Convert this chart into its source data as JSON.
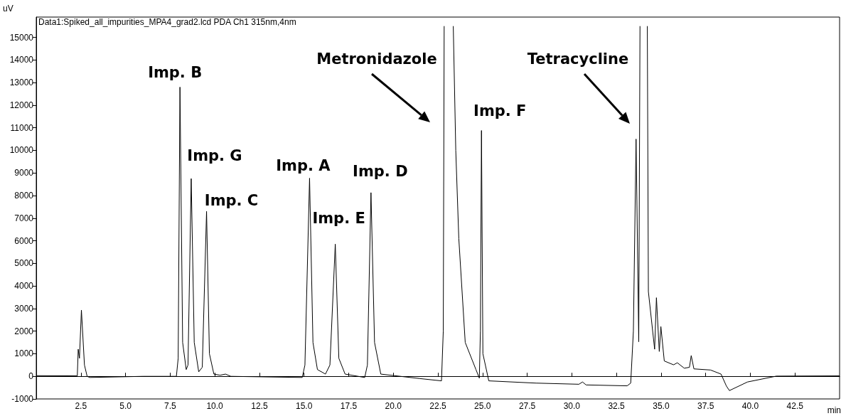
{
  "chart_data": {
    "type": "line",
    "title": "Data1:Spiked_all_impurities_MPA4_grad2.lcd PDA Ch1 315nm,4nm",
    "xlabel": "min",
    "ylabel": "uV",
    "xlim": [
      0,
      45
    ],
    "ylim": [
      -1000,
      15900
    ],
    "xticks": [
      {
        "value": 2.5,
        "label": "2.5"
      },
      {
        "value": 5,
        "label": "5.0"
      },
      {
        "value": 7.5,
        "label": "7.5"
      },
      {
        "value": 10,
        "label": "10.0"
      },
      {
        "value": 12.5,
        "label": "12.5"
      },
      {
        "value": 15,
        "label": "15.0"
      },
      {
        "value": 17.5,
        "label": "17.5"
      },
      {
        "value": 20,
        "label": "20.0"
      },
      {
        "value": 22.5,
        "label": "22.5"
      },
      {
        "value": 25,
        "label": "25.0"
      },
      {
        "value": 27.5,
        "label": "27.5"
      },
      {
        "value": 30,
        "label": "30.0"
      },
      {
        "value": 32.5,
        "label": "32.5"
      },
      {
        "value": 35,
        "label": "35.0"
      },
      {
        "value": 37.5,
        "label": "37.5"
      },
      {
        "value": 40,
        "label": "40.0"
      },
      {
        "value": 42.5,
        "label": "42.5"
      }
    ],
    "yticks": [
      -1000,
      0,
      1000,
      2000,
      3000,
      4000,
      5000,
      6000,
      7000,
      8000,
      9000,
      10000,
      11000,
      12000,
      13000,
      14000,
      15000
    ],
    "marker": "none",
    "line_style": "solid",
    "series": [
      {
        "color": "#000000",
        "x": [
          0,
          2.3,
          2.35,
          2.42,
          2.53,
          2.7,
          2.85,
          3.0,
          6.0,
          7.85,
          7.95,
          8.05,
          8.2,
          8.4,
          8.5,
          8.68,
          8.85,
          9.1,
          9.3,
          9.54,
          9.7,
          9.95,
          10.3,
          10.6,
          10.9,
          14.9,
          15.05,
          15.31,
          15.5,
          15.75,
          16.2,
          16.45,
          16.75,
          16.95,
          17.3,
          18.4,
          18.55,
          18.75,
          18.95,
          19.3,
          21.5,
          22.7,
          22.8,
          22.85,
          23.1,
          23.36,
          23.5,
          23.67,
          24.03,
          24.63,
          24.82,
          24.88,
          24.94,
          25.02,
          25.35,
          28,
          30.4,
          30.6,
          30.8,
          33.1,
          33.3,
          33.45,
          33.6,
          33.75,
          33.82,
          34.0,
          34.23,
          34.29,
          34.64,
          34.74,
          34.9,
          34.99,
          35.18,
          35.7,
          35.91,
          36.3,
          36.59,
          36.69,
          36.84,
          37.77,
          38.36,
          38.66,
          38.83,
          39.84,
          41.46,
          45
        ],
        "values": [
          30,
          20,
          1200,
          800,
          2930,
          500,
          0,
          -50,
          0,
          0,
          800,
          12800,
          1500,
          300,
          500,
          8750,
          1500,
          200,
          400,
          7300,
          1000,
          100,
          50,
          100,
          0,
          -50,
          500,
          8770,
          1500,
          300,
          100,
          500,
          5850,
          800,
          100,
          -50,
          500,
          8130,
          1500,
          100,
          -100,
          -200,
          2000,
          15500,
          null,
          15500,
          10000,
          6100,
          1500,
          300,
          -80,
          2000,
          10880,
          1000,
          -200,
          -300,
          -350,
          -250,
          -380,
          -420,
          -300,
          2000,
          10500,
          1530,
          15500,
          null,
          15500,
          3750,
          1200,
          3480,
          1100,
          2200,
          680,
          510,
          600,
          360,
          400,
          920,
          330,
          280,
          100,
          -430,
          -630,
          -250,
          10,
          20
        ]
      }
    ],
    "annotations": [
      {
        "text": "Imp. B",
        "x": 8.05,
        "y": 12800
      },
      {
        "text": "Imp. G",
        "x": 8.68,
        "y": 8750
      },
      {
        "text": "Imp. C",
        "x": 9.54,
        "y": 7300
      },
      {
        "text": "Imp. A",
        "x": 15.31,
        "y": 8770
      },
      {
        "text": "Imp. E",
        "x": 16.75,
        "y": 5850
      },
      {
        "text": "Imp. D",
        "x": 18.75,
        "y": 8130
      },
      {
        "text": "Imp. F",
        "x": 24.94,
        "y": 10880
      },
      "Metronidazole",
      "Tetracycline"
    ]
  }
}
